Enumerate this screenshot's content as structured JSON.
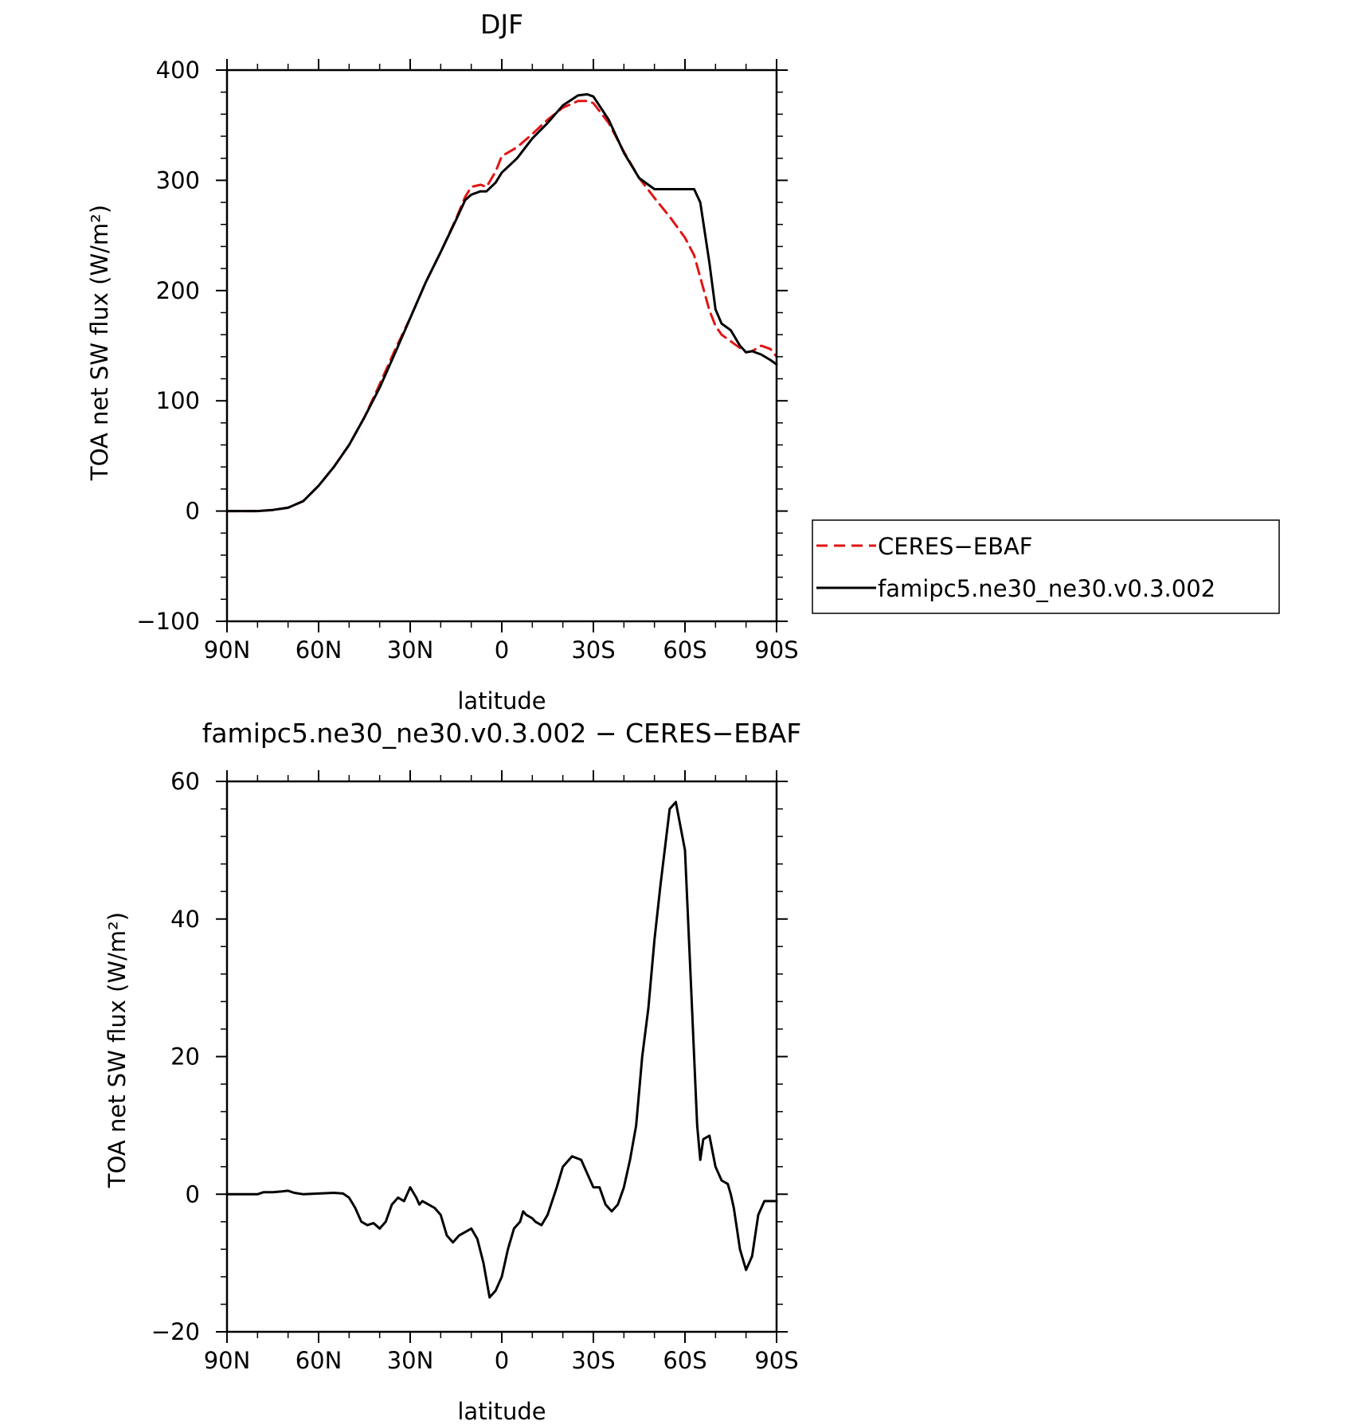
{
  "chart_data": [
    {
      "type": "line",
      "title": "DJF",
      "xlabel": "latitude",
      "ylabel": "TOA net SW flux (W/m²)",
      "xlim": [
        90,
        -90
      ],
      "ylim": [
        -100,
        400
      ],
      "x_ticks": [
        90,
        60,
        30,
        0,
        -30,
        -60,
        -90
      ],
      "x_tick_labels": [
        "90N",
        "60N",
        "30N",
        "0",
        "30S",
        "60S",
        "90S"
      ],
      "y_ticks": [
        -100,
        0,
        100,
        200,
        300,
        400
      ],
      "y_tick_labels": [
        "−100",
        "0",
        "100",
        "200",
        "300",
        "400"
      ],
      "legend": {
        "position": "right",
        "entries": [
          {
            "label": "CERES−EBAF",
            "color": "#e11414",
            "dash": "dashed"
          },
          {
            "label": "famipc5.ne30_ne30.v0.3.002",
            "color": "#000000",
            "dash": "solid"
          }
        ]
      },
      "series": [
        {
          "name": "CERES−EBAF",
          "color": "#e11414",
          "style": "dashed",
          "x": [
            90,
            85,
            80,
            75,
            70,
            65,
            60,
            55,
            50,
            45,
            40,
            35,
            30,
            25,
            20,
            15,
            12,
            10,
            7,
            5,
            2,
            0,
            -5,
            -10,
            -15,
            -20,
            -25,
            -28,
            -30,
            -35,
            -40,
            -45,
            -50,
            -55,
            -60,
            -63,
            -65,
            -68,
            -70,
            -72,
            -75,
            -78,
            -80,
            -82,
            -85,
            -88,
            -90
          ],
          "values": [
            0,
            0,
            0,
            1,
            3,
            9,
            23,
            40,
            60,
            85,
            115,
            146,
            175,
            207,
            235,
            265,
            285,
            294,
            296,
            294,
            308,
            322,
            330,
            342,
            355,
            366,
            372,
            372,
            370,
            352,
            326,
            302,
            284,
            267,
            248,
            232,
            212,
            182,
            168,
            160,
            154,
            148,
            144,
            145,
            150,
            147,
            140
          ]
        },
        {
          "name": "famipc5.ne30_ne30.v0.3.002",
          "color": "#000000",
          "style": "solid",
          "x": [
            90,
            85,
            80,
            75,
            70,
            65,
            60,
            55,
            50,
            45,
            40,
            35,
            30,
            25,
            20,
            15,
            12,
            10,
            7,
            5,
            2,
            0,
            -5,
            -10,
            -15,
            -20,
            -25,
            -28,
            -30,
            -35,
            -40,
            -45,
            -50,
            -55,
            -60,
            -63,
            -65,
            -68,
            -70,
            -72,
            -75,
            -78,
            -80,
            -82,
            -85,
            -88,
            -90
          ],
          "values": [
            0,
            0,
            0,
            1,
            3,
            9,
            23,
            40,
            60,
            85,
            112,
            143,
            175,
            207,
            235,
            264,
            282,
            287,
            290,
            290,
            298,
            307,
            320,
            338,
            352,
            368,
            377,
            378,
            376,
            355,
            325,
            302,
            292,
            292,
            292,
            292,
            280,
            225,
            183,
            170,
            164,
            150,
            144,
            145,
            142,
            137,
            133
          ]
        }
      ]
    },
    {
      "type": "line",
      "title": "famipc5.ne30_ne30.v0.3.002 − CERES−EBAF",
      "xlabel": "latitude",
      "ylabel": "TOA net SW flux (W/m²)",
      "xlim": [
        90,
        -90
      ],
      "ylim": [
        -20,
        60
      ],
      "x_ticks": [
        90,
        60,
        30,
        0,
        -30,
        -60,
        -90
      ],
      "x_tick_labels": [
        "90N",
        "60N",
        "30N",
        "0",
        "30S",
        "60S",
        "90S"
      ],
      "y_ticks": [
        -20,
        0,
        20,
        40,
        60
      ],
      "y_tick_labels": [
        "−20",
        "0",
        "20",
        "40",
        "60"
      ],
      "series": [
        {
          "name": "",
          "color": "#000000",
          "style": "solid",
          "x": [
            90,
            80,
            78,
            75,
            72,
            70,
            68,
            65,
            60,
            55,
            52,
            50,
            48,
            46,
            44,
            42,
            40,
            38,
            36,
            34,
            32,
            30,
            28,
            27,
            26,
            24,
            22,
            20,
            18,
            16,
            14,
            12,
            10,
            8,
            6,
            4,
            2,
            0,
            -2,
            -4,
            -6,
            -7,
            -8,
            -10,
            -11,
            -13,
            -15,
            -18,
            -20,
            -23,
            -26,
            -28,
            -30,
            -32,
            -34,
            -36,
            -38,
            -40,
            -42,
            -44,
            -46,
            -48,
            -50,
            -52,
            -55,
            -57,
            -60,
            -62,
            -64,
            -65,
            -66,
            -68,
            -70,
            -72,
            -74,
            -75,
            -76,
            -77,
            -78,
            -80,
            -82,
            -84,
            -86,
            -87,
            -88,
            -89,
            -90
          ],
          "values": [
            0,
            0,
            0.3,
            0.3,
            0.4,
            0.5,
            0.2,
            0,
            0.1,
            0.2,
            0.1,
            -0.5,
            -2,
            -4,
            -4.5,
            -4.2,
            -5,
            -4,
            -1.5,
            -0.5,
            -1,
            1,
            -0.5,
            -1.5,
            -1,
            -1.5,
            -2,
            -3,
            -6,
            -7,
            -6,
            -5.5,
            -5,
            -6.5,
            -10,
            -15,
            -14,
            -12,
            -8,
            -5,
            -4,
            -2.5,
            -3,
            -3.5,
            -4,
            -4.5,
            -3,
            1,
            4,
            5.5,
            5,
            3,
            1,
            1,
            -1.5,
            -2.5,
            -1.5,
            1,
            5,
            10,
            20,
            27,
            37,
            45,
            56,
            57,
            50,
            30,
            10,
            5,
            8,
            8.5,
            4,
            2,
            1.5,
            0,
            -2,
            -5,
            -8,
            -11,
            -9,
            -3,
            -1,
            -1,
            -1,
            -1,
            -1
          ]
        }
      ]
    }
  ]
}
